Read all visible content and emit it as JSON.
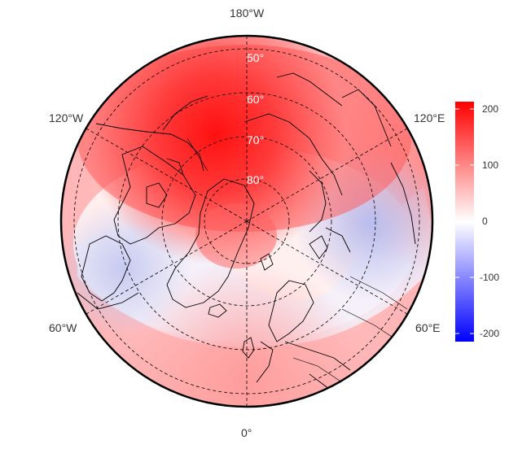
{
  "map": {
    "projection": "north-polar-stereographic",
    "center_label_top": "180°W",
    "center_label_bottom": "0°",
    "lon_labels": {
      "top": "180°W",
      "upper_left": "120°W",
      "upper_right": "120°E",
      "lower_left": "60°W",
      "lower_right": "60°E",
      "bottom": "0°"
    },
    "lat_labels": [
      "50°",
      "60°",
      "70°",
      "80°"
    ],
    "grid": "dashed",
    "coastlines": true
  },
  "colorbar": {
    "ticks": [
      "200",
      "100",
      "0",
      "-100",
      "-200"
    ],
    "colors": {
      "max": "#ff0000",
      "mid": "#ffffff",
      "min": "#0000ff"
    },
    "range": [
      -215,
      215
    ]
  },
  "field_description_colors": {
    "positive_core": "#ff0000",
    "ring_light": "#f7c9c9",
    "negative_band": "#c9cdef"
  }
}
